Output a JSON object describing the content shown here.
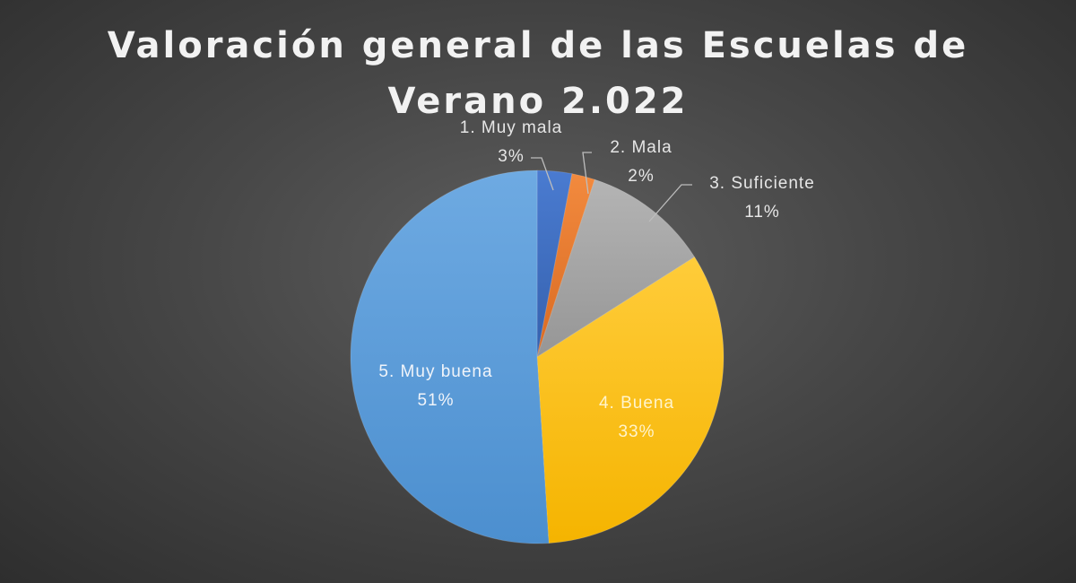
{
  "chart_data": {
    "type": "pie",
    "title": "Valoración general de las Escuelas de Verano 2.022",
    "title_lines": [
      "Valoración general de las Escuelas de",
      "Verano 2.022"
    ],
    "slices": [
      {
        "label": "1. Muy mala",
        "value": 3,
        "percent_label": "3%",
        "color": "#4472c4"
      },
      {
        "label": "2. Mala",
        "value": 2,
        "percent_label": "2%",
        "color": "#ed7d31"
      },
      {
        "label": "3. Suficiente",
        "value": 11,
        "percent_label": "11%",
        "color": "#a5a5a5"
      },
      {
        "label": "4. Buena",
        "value": 33,
        "percent_label": "33%",
        "color": "#ffc000"
      },
      {
        "label": "5. Muy buena",
        "value": 51,
        "percent_label": "51%",
        "color": "#5b9bd5"
      }
    ],
    "legend": "none",
    "label_color": "#e8e8e8"
  }
}
